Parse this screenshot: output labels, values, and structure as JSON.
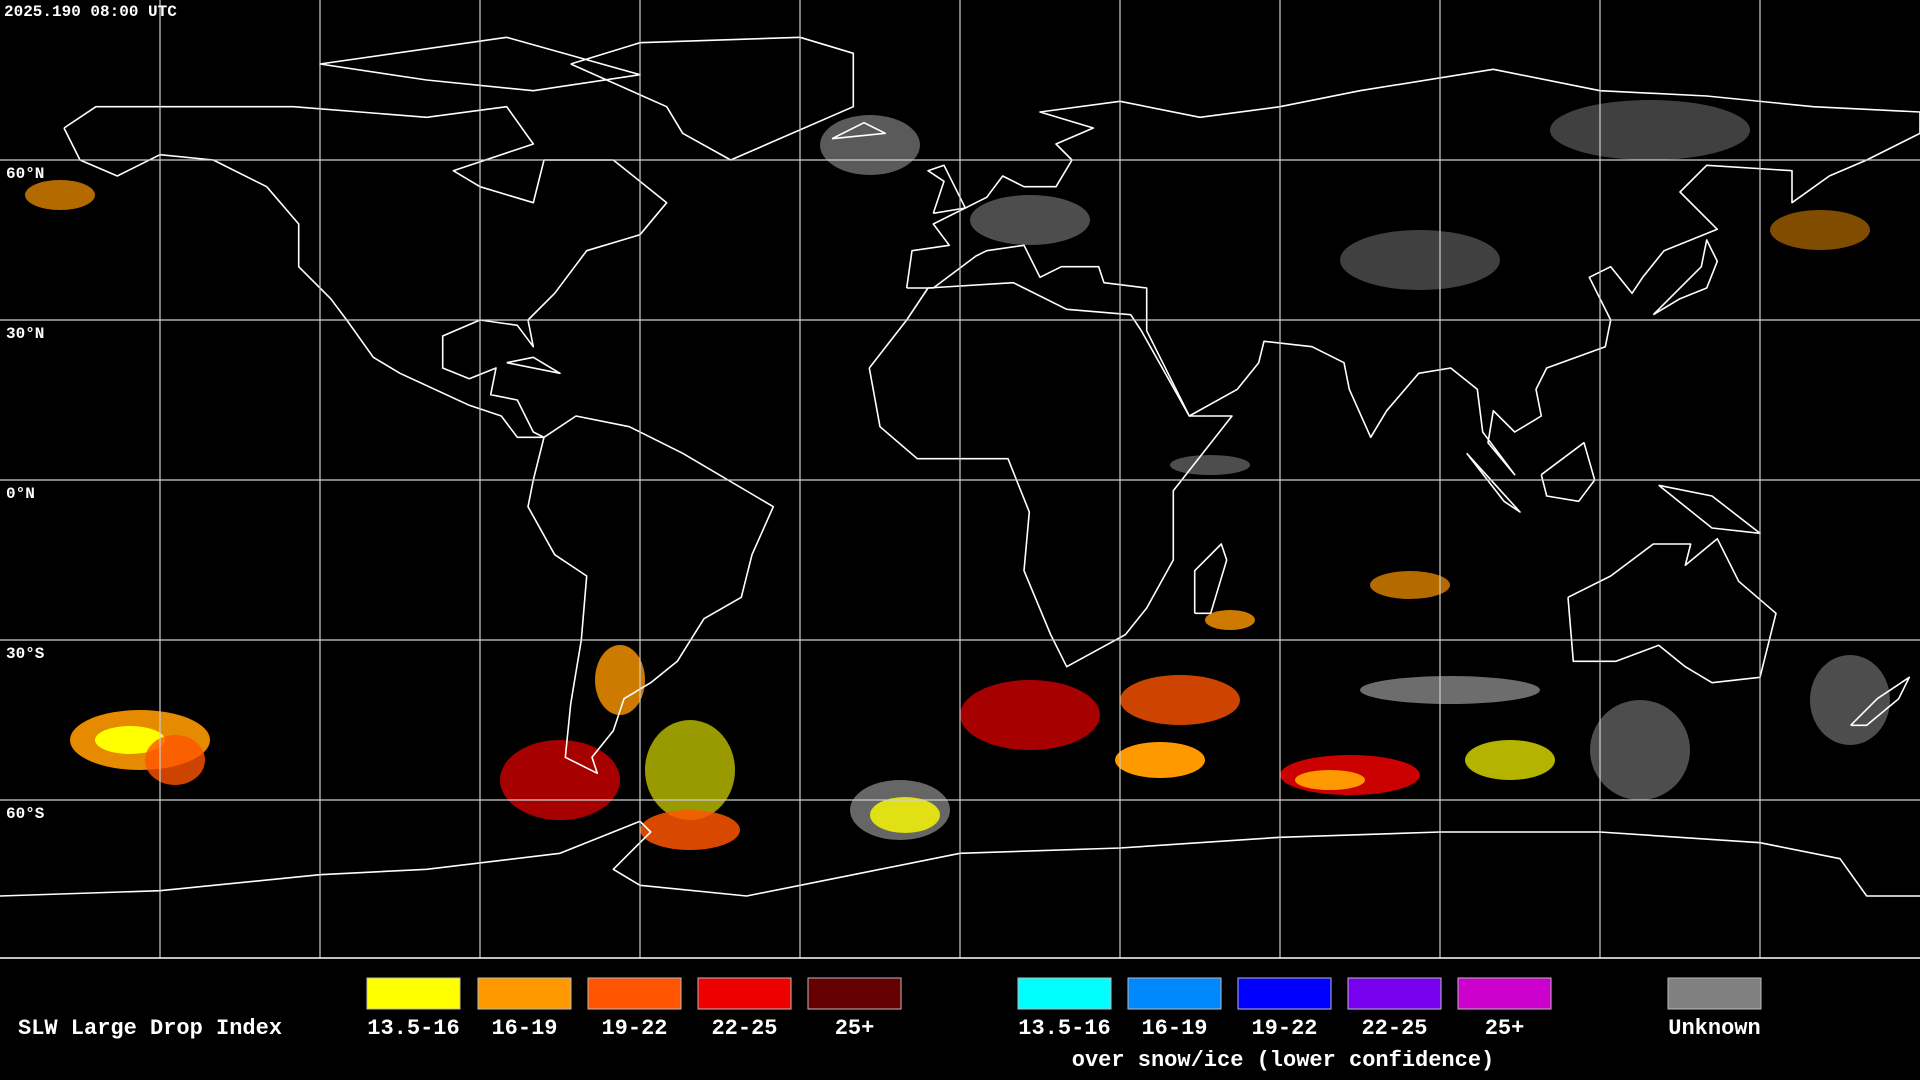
{
  "timestamp": "2025.190 08:00 UTC",
  "latitude_labels": [
    "60°N",
    "30°N",
    "0°N",
    "30°S",
    "60°S"
  ],
  "legend": {
    "title": "SLW Large Drop Index",
    "items": [
      {
        "label": "13.5-16",
        "color": "#ffff00"
      },
      {
        "label": "16-19",
        "color": "#ff9900"
      },
      {
        "label": "19-22",
        "color": "#ff5500"
      },
      {
        "label": "22-25",
        "color": "#ee0000"
      },
      {
        "label": "25+",
        "color": "#660000"
      }
    ],
    "snow_ice_items": [
      {
        "label": "13.5-16",
        "color": "#00ffff"
      },
      {
        "label": "16-19",
        "color": "#0088ff"
      },
      {
        "label": "19-22",
        "color": "#0000ff"
      },
      {
        "label": "22-25",
        "color": "#7700ee"
      },
      {
        "label": "25+",
        "color": "#cc00cc"
      }
    ],
    "snow_ice_note": "over snow/ice (lower confidence)",
    "unknown": {
      "label": "Unknown",
      "color": "#808080"
    }
  }
}
